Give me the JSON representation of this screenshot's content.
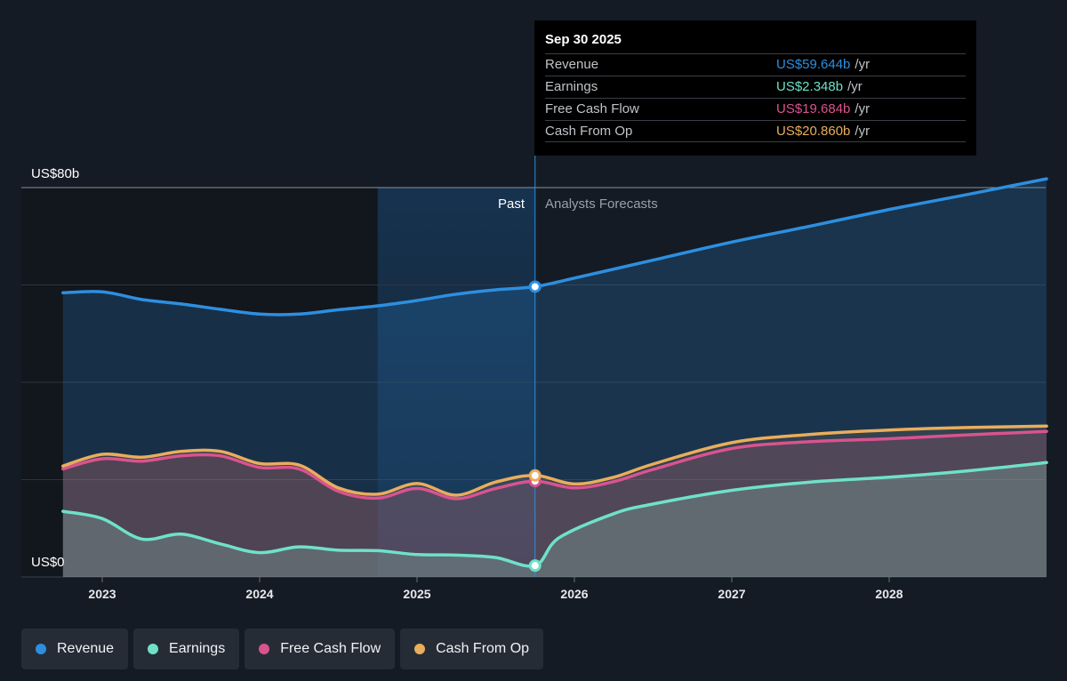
{
  "chart_data": {
    "type": "area",
    "y_axis": {
      "top_label": "US$80b",
      "bottom_label": "US$0",
      "ylim": [
        0,
        80
      ]
    },
    "x_axis": {
      "ticks": [
        "2023",
        "2024",
        "2025",
        "2026",
        "2027",
        "2028"
      ],
      "xlim": [
        2022.75,
        2029.0
      ]
    },
    "regions": {
      "past_label": "Past",
      "forecast_label": "Analysts Forecasts",
      "split_x": 2025.75,
      "highlight_start_x": 2024.75
    },
    "series": [
      {
        "name": "Revenue",
        "color": "#2d8fe0",
        "x": [
          2022.75,
          2023.0,
          2023.25,
          2023.5,
          2023.75,
          2024.0,
          2024.25,
          2024.5,
          2024.75,
          2025.0,
          2025.25,
          2025.5,
          2025.75,
          2026.0,
          2026.5,
          2027.0,
          2027.5,
          2028.0,
          2028.5,
          2029.0
        ],
        "values": [
          58.4,
          58.6,
          57.0,
          56.1,
          55.0,
          54.0,
          54.0,
          54.9,
          55.7,
          56.8,
          58.1,
          59.0,
          59.644,
          61.4,
          65.1,
          68.8,
          72.1,
          75.5,
          78.6,
          81.8
        ]
      },
      {
        "name": "Earnings",
        "color": "#6fe1c9",
        "x": [
          2022.75,
          2023.0,
          2023.25,
          2023.5,
          2023.75,
          2024.0,
          2024.25,
          2024.5,
          2024.75,
          2025.0,
          2025.25,
          2025.5,
          2025.75,
          2025.9,
          2026.25,
          2026.5,
          2027.0,
          2027.5,
          2028.0,
          2028.5,
          2029.0
        ],
        "values": [
          13.5,
          12.0,
          7.8,
          8.8,
          6.8,
          5.0,
          6.2,
          5.5,
          5.4,
          4.6,
          4.5,
          4.0,
          2.348,
          8.0,
          13.0,
          15.0,
          17.8,
          19.5,
          20.5,
          21.8,
          23.5
        ]
      },
      {
        "name": "Free Cash Flow",
        "color": "#d9538f",
        "x": [
          2022.75,
          2023.0,
          2023.25,
          2023.5,
          2023.75,
          2024.0,
          2024.25,
          2024.5,
          2024.75,
          2025.0,
          2025.25,
          2025.5,
          2025.75,
          2026.0,
          2026.25,
          2026.5,
          2027.0,
          2027.5,
          2028.0,
          2028.5,
          2029.0
        ],
        "values": [
          22.2,
          24.3,
          23.8,
          24.9,
          24.9,
          22.5,
          22.2,
          17.6,
          16.2,
          18.2,
          16.1,
          18.2,
          19.684,
          18.3,
          19.6,
          22.1,
          26.4,
          27.8,
          28.4,
          29.2,
          29.9
        ]
      },
      {
        "name": "Cash From Op",
        "color": "#e9ad5c",
        "x": [
          2022.75,
          2023.0,
          2023.25,
          2023.5,
          2023.75,
          2024.0,
          2024.25,
          2024.5,
          2024.75,
          2025.0,
          2025.25,
          2025.5,
          2025.75,
          2026.0,
          2026.25,
          2026.5,
          2027.0,
          2027.5,
          2028.0,
          2028.5,
          2029.0
        ],
        "values": [
          22.8,
          25.2,
          24.6,
          25.8,
          25.8,
          23.3,
          23.0,
          18.3,
          17.0,
          19.2,
          16.8,
          19.5,
          20.86,
          19.1,
          20.5,
          23.2,
          27.6,
          29.3,
          30.2,
          30.7,
          31.0
        ]
      }
    ]
  },
  "tooltip": {
    "date": "Sep 30 2025",
    "rows": [
      {
        "label": "Revenue",
        "value": "US$59.644b",
        "unit": "/yr",
        "color": "#2d8fe0"
      },
      {
        "label": "Earnings",
        "value": "US$2.348b",
        "unit": "/yr",
        "color": "#6fe1c9"
      },
      {
        "label": "Free Cash Flow",
        "value": "US$19.684b",
        "unit": "/yr",
        "color": "#d9538f"
      },
      {
        "label": "Cash From Op",
        "value": "US$20.860b",
        "unit": "/yr",
        "color": "#e9ad5c"
      }
    ]
  },
  "legend": [
    {
      "label": "Revenue",
      "color": "#2d8fe0"
    },
    {
      "label": "Earnings",
      "color": "#6fe1c9"
    },
    {
      "label": "Free Cash Flow",
      "color": "#d9538f"
    },
    {
      "label": "Cash From Op",
      "color": "#e9ad5c"
    }
  ]
}
